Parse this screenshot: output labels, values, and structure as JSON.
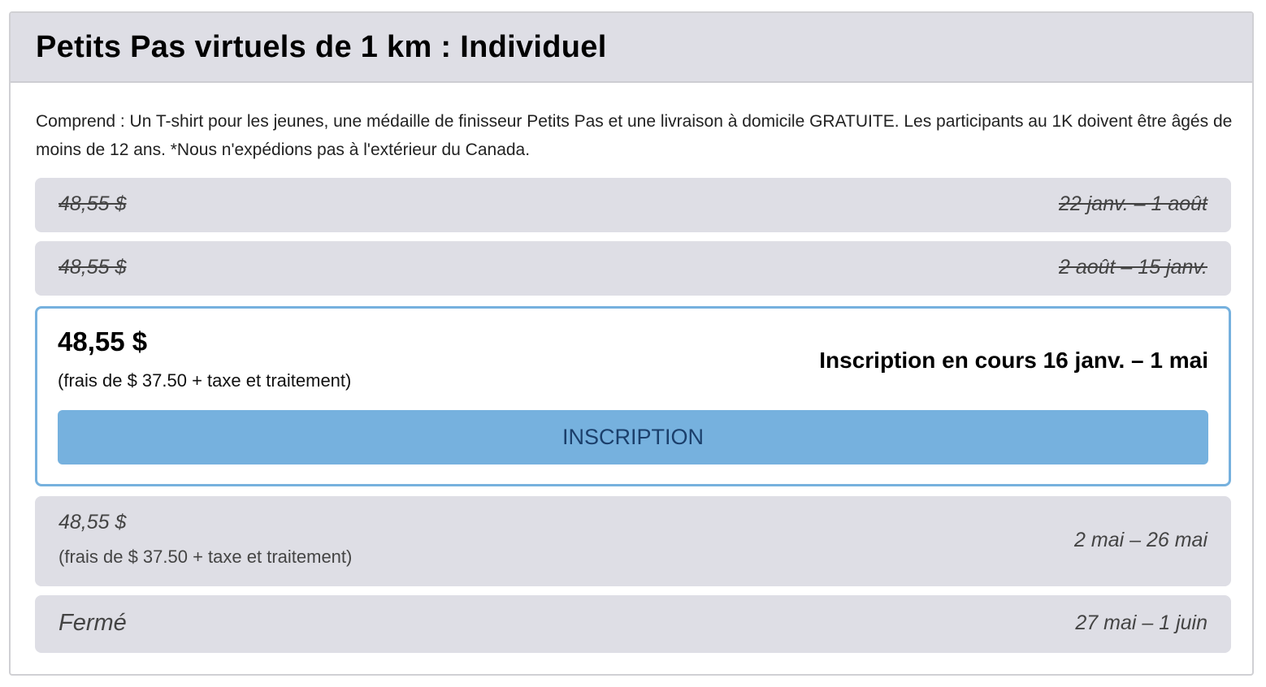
{
  "title": "Petits Pas virtuels de 1 km : Individuel",
  "description": "Comprend : Un T-shirt pour les jeunes, une médaille de finisseur Petits Pas et une livraison à domicile GRATUITE. Les participants au 1K doivent être âgés de moins de 12 ans. *Nous n'expédions pas à l'extérieur du Canada.",
  "periods": [
    {
      "price": "48,55 $",
      "dates": "22 janv. – 1 août",
      "status": "past"
    },
    {
      "price": "48,55 $",
      "dates": "2 août – 15 janv.",
      "status": "past"
    },
    {
      "price": "48,55 $",
      "fee": "(frais de $ 37.50 + taxe et traitement)",
      "dates": "Inscription en cours 16 janv. – 1 mai",
      "button": "INSCRIPTION",
      "status": "current"
    },
    {
      "price": "48,55 $",
      "fee": "(frais de $ 37.50 + taxe et traitement)",
      "dates": "2 mai – 26 mai",
      "status": "upcoming"
    },
    {
      "price": "Fermé",
      "dates": "27 mai – 1 juin",
      "status": "closed"
    }
  ],
  "colors": {
    "accent": "#76b1de",
    "row_bg": "#dedee5",
    "button_text": "#1b3f6b"
  }
}
